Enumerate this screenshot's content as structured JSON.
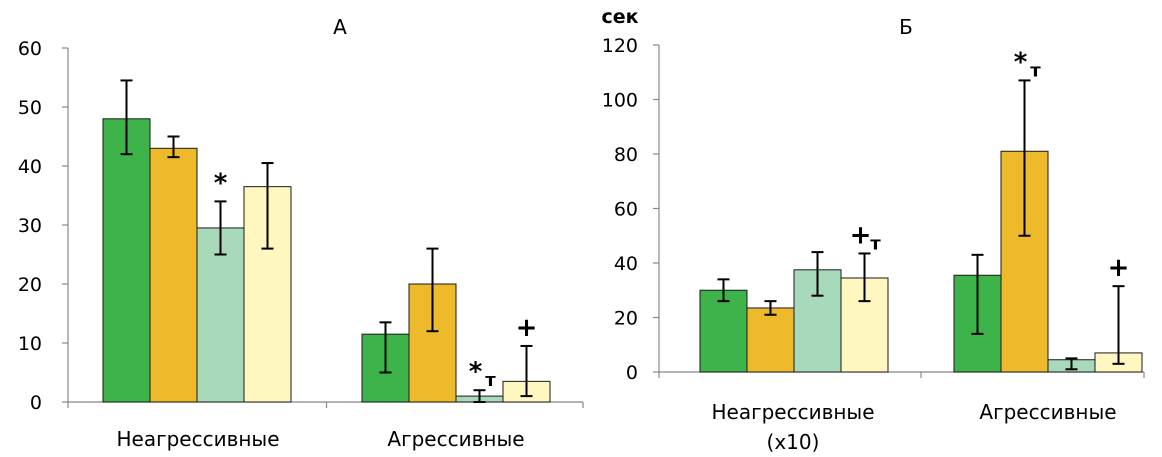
{
  "chart_data": [
    {
      "type": "bar",
      "title": "А",
      "ylabel": "",
      "ylim": [
        0,
        60
      ],
      "yticks": [
        0,
        10,
        20,
        30,
        40,
        50,
        60
      ],
      "categories": [
        "Неагрессивные",
        "Агрессивные"
      ],
      "series": [
        {
          "color": "#3db34a",
          "values": [
            48,
            11.5
          ],
          "err_low": [
            42,
            5
          ],
          "err_high": [
            54.5,
            13.5
          ]
        },
        {
          "color": "#ecba2b",
          "values": [
            43,
            20
          ],
          "err_low": [
            41.5,
            12
          ],
          "err_high": [
            45,
            26
          ]
        },
        {
          "color": "#a9d9bb",
          "values": [
            29.5,
            1
          ],
          "err_low": [
            25,
            0
          ],
          "err_high": [
            34,
            2
          ]
        },
        {
          "color": "#fff6c0",
          "values": [
            36.5,
            3.5
          ],
          "err_low": [
            26,
            1
          ],
          "err_high": [
            40.5,
            9.5
          ]
        }
      ],
      "annotations": [
        {
          "series": 2,
          "category": 0,
          "symbol": "*",
          "sub": ""
        },
        {
          "series": 2,
          "category": 1,
          "symbol": "*",
          "sub": "т"
        },
        {
          "series": 3,
          "category": 1,
          "symbol": "+",
          "sub": ""
        }
      ]
    },
    {
      "type": "bar",
      "title": "Б",
      "ylabel": "сек",
      "ylim": [
        0,
        120
      ],
      "yticks": [
        0,
        20,
        40,
        60,
        80,
        100,
        120
      ],
      "categories": [
        "Неагрессивные\n(x10)",
        "Агрессивные"
      ],
      "series": [
        {
          "color": "#3db34a",
          "values": [
            30,
            35.5
          ],
          "err_low": [
            26,
            14
          ],
          "err_high": [
            34,
            43
          ]
        },
        {
          "color": "#ecba2b",
          "values": [
            23.5,
            81
          ],
          "err_low": [
            21,
            50
          ],
          "err_high": [
            26,
            107
          ]
        },
        {
          "color": "#a9d9bb",
          "values": [
            37.5,
            4.5
          ],
          "err_low": [
            28,
            1
          ],
          "err_high": [
            44,
            5
          ]
        },
        {
          "color": "#fff6c0",
          "values": [
            34.5,
            7
          ],
          "err_low": [
            26,
            3
          ],
          "err_high": [
            43.5,
            31.5
          ]
        }
      ],
      "annotations": [
        {
          "series": 3,
          "category": 0,
          "symbol": "+",
          "sub": "т"
        },
        {
          "series": 1,
          "category": 1,
          "symbol": "*",
          "sub": "т"
        },
        {
          "series": 3,
          "category": 1,
          "symbol": "+",
          "sub": ""
        }
      ]
    }
  ]
}
